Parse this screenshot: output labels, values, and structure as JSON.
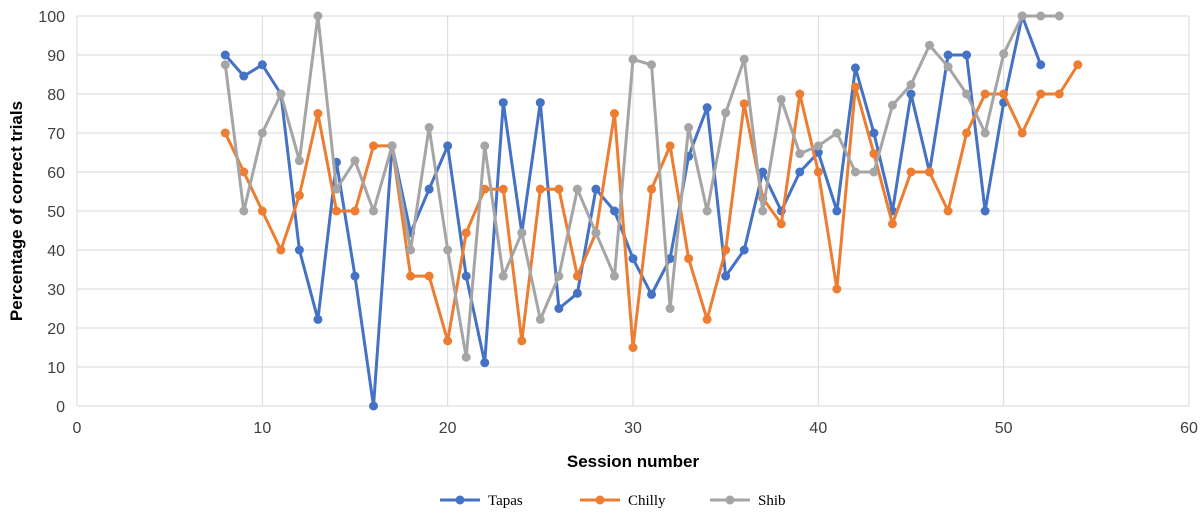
{
  "chart_data": {
    "type": "line",
    "xlabel": "Session number",
    "ylabel": "Percentage of correct trials",
    "xlim": [
      0,
      60
    ],
    "ylim": [
      0,
      100
    ],
    "xticks": [
      0,
      10,
      20,
      30,
      40,
      50,
      60
    ],
    "yticks": [
      0,
      10,
      20,
      30,
      40,
      50,
      60,
      70,
      80,
      90,
      100
    ],
    "grid": true,
    "legend_position": "bottom",
    "series": [
      {
        "name": "Tapas",
        "color": "#4472c4",
        "x": [
          8,
          9,
          10,
          11,
          12,
          13,
          14,
          15,
          16,
          17,
          18,
          19,
          20,
          21,
          22,
          23,
          24,
          25,
          26,
          27,
          28,
          29,
          30,
          31,
          32,
          33,
          34,
          35,
          36,
          37,
          38,
          39,
          40,
          41,
          42,
          43,
          44,
          45,
          46,
          47,
          48,
          49,
          50,
          51,
          52
        ],
        "y": [
          90,
          84.6,
          87.5,
          80,
          40,
          22.2,
          62.5,
          33.3,
          0,
          66.7,
          44.4,
          55.6,
          66.7,
          33.3,
          11.1,
          77.8,
          44.4,
          77.8,
          25,
          28.9,
          55.6,
          50,
          37.8,
          28.6,
          37.8,
          64,
          76.5,
          33.3,
          40,
          60,
          50,
          60,
          65,
          50,
          86.7,
          70,
          50,
          80,
          60,
          90,
          90,
          50,
          77.8,
          100,
          87.5
        ]
      },
      {
        "name": "Chilly",
        "color": "#ed7d31",
        "x": [
          8,
          9,
          10,
          11,
          12,
          13,
          14,
          15,
          16,
          17,
          18,
          19,
          20,
          21,
          22,
          23,
          24,
          25,
          26,
          27,
          28,
          29,
          30,
          31,
          32,
          33,
          34,
          35,
          36,
          37,
          38,
          39,
          40,
          41,
          42,
          43,
          44,
          45,
          46,
          47,
          48,
          49,
          50,
          51,
          52,
          53,
          54
        ],
        "y": [
          70,
          60,
          50,
          40,
          54,
          75,
          50,
          50,
          66.7,
          66.7,
          33.3,
          33.3,
          16.7,
          44.4,
          55.6,
          55.6,
          16.7,
          55.6,
          55.6,
          33.3,
          44.4,
          75,
          15,
          55.6,
          66.7,
          37.8,
          22.2,
          40,
          77.5,
          53.3,
          46.7,
          80,
          60,
          30,
          81.8,
          64.7,
          46.7,
          60,
          60,
          50,
          70,
          80,
          80,
          70,
          80,
          80,
          87.5
        ]
      },
      {
        "name": "Shib",
        "color": "#a5a5a5",
        "x": [
          8,
          9,
          10,
          11,
          12,
          13,
          14,
          15,
          16,
          17,
          18,
          19,
          20,
          21,
          22,
          23,
          24,
          25,
          26,
          27,
          28,
          29,
          30,
          31,
          32,
          33,
          34,
          35,
          36,
          37,
          38,
          39,
          40,
          41,
          42,
          43,
          44,
          45,
          46,
          47,
          48,
          49,
          50,
          51,
          52,
          53
        ],
        "y": [
          87.5,
          50,
          70,
          80,
          62.9,
          100,
          55.6,
          62.9,
          50,
          66.7,
          40,
          71.4,
          40,
          12.5,
          66.7,
          33.3,
          44.4,
          22.2,
          33.3,
          55.6,
          44.4,
          33.3,
          88.9,
          87.5,
          25,
          71.4,
          50,
          75.2,
          88.9,
          50,
          78.6,
          64.7,
          66.7,
          70,
          60,
          60,
          77.1,
          82.4,
          92.5,
          87,
          80,
          70,
          90.3,
          100,
          100,
          100
        ]
      }
    ]
  }
}
